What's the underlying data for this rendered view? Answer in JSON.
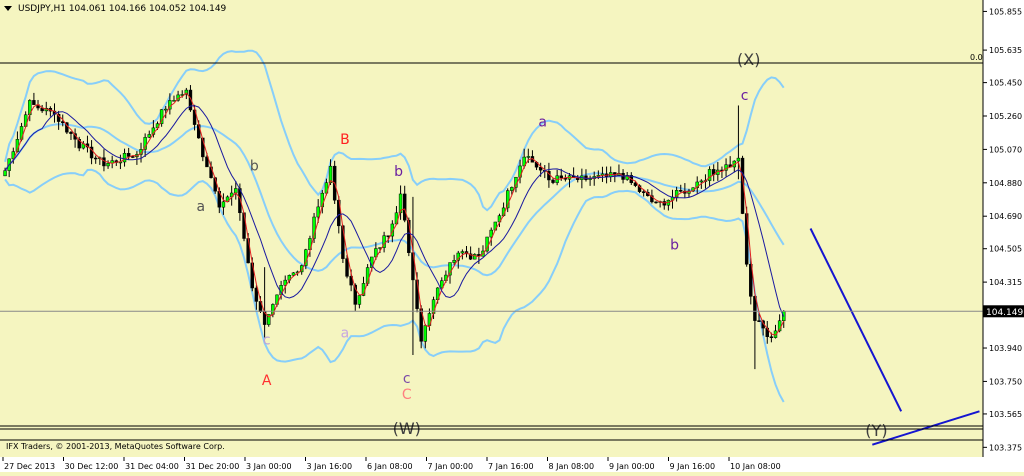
{
  "chart_data": {
    "type": "candlestick",
    "symbol_title": "USDJPY,H1  104.061 104.166 104.052 104.149",
    "indicator_label": "0.0",
    "copyright": "IFX Traders, © 2001-2013, MetaQuotes Software Corp.",
    "current_price": 104.149,
    "current_price_label": "104.149",
    "ylim": [
      103.32,
      105.92
    ],
    "y_ticks": [
      "105.855",
      "105.635",
      "105.450",
      "105.260",
      "105.070",
      "104.880",
      "104.690",
      "104.505",
      "104.315",
      "103.940",
      "103.750",
      "103.565",
      "103.375"
    ],
    "x_ticks": [
      "27 Dec 2013",
      "30 Dec 12:00",
      "31 Dec 04:00",
      "31 Dec 20:00",
      "3 Jan 00:00",
      "3 Jan 16:00",
      "6 Jan 08:00",
      "7 Jan 00:00",
      "7 Jan 16:00",
      "8 Jan 08:00",
      "9 Jan 00:00",
      "9 Jan 16:00",
      "10 Jan 08:00"
    ],
    "close_series": [
      {
        "bar": 0,
        "price": 104.95
      },
      {
        "bar": 6,
        "price": 105.33
      },
      {
        "bar": 12,
        "price": 105.27
      },
      {
        "bar": 18,
        "price": 105.1
      },
      {
        "bar": 24,
        "price": 104.98
      },
      {
        "bar": 32,
        "price": 105.05
      },
      {
        "bar": 40,
        "price": 105.35
      },
      {
        "bar": 44,
        "price": 105.4
      },
      {
        "bar": 48,
        "price": 105.05
      },
      {
        "bar": 52,
        "price": 104.75
      },
      {
        "bar": 56,
        "price": 104.85
      },
      {
        "bar": 60,
        "price": 104.3
      },
      {
        "bar": 63,
        "price": 104.05
      },
      {
        "bar": 68,
        "price": 104.35
      },
      {
        "bar": 72,
        "price": 104.4
      },
      {
        "bar": 76,
        "price": 104.75
      },
      {
        "bar": 79,
        "price": 104.95
      },
      {
        "bar": 82,
        "price": 104.45
      },
      {
        "bar": 85,
        "price": 104.2
      },
      {
        "bar": 89,
        "price": 104.45
      },
      {
        "bar": 93,
        "price": 104.6
      },
      {
        "bar": 96,
        "price": 104.8
      },
      {
        "bar": 99,
        "price": 104.35
      },
      {
        "bar": 101,
        "price": 104.0
      },
      {
        "bar": 105,
        "price": 104.3
      },
      {
        "bar": 110,
        "price": 104.5
      },
      {
        "bar": 115,
        "price": 104.45
      },
      {
        "bar": 120,
        "price": 104.7
      },
      {
        "bar": 126,
        "price": 105.05
      },
      {
        "bar": 132,
        "price": 104.9
      },
      {
        "bar": 140,
        "price": 104.9
      },
      {
        "bar": 150,
        "price": 104.92
      },
      {
        "bar": 158,
        "price": 104.75
      },
      {
        "bar": 166,
        "price": 104.85
      },
      {
        "bar": 172,
        "price": 104.95
      },
      {
        "bar": 178,
        "price": 105.0
      },
      {
        "bar": 180,
        "price": 104.4
      },
      {
        "bar": 182,
        "price": 104.1
      },
      {
        "bar": 186,
        "price": 104.0
      },
      {
        "bar": 189,
        "price": 104.15
      }
    ],
    "spikes": [
      {
        "bar": 178,
        "high": 105.32,
        "low": 104.9
      },
      {
        "bar": 182,
        "high": 104.2,
        "low": 103.82
      },
      {
        "bar": 99,
        "high": 104.8,
        "low": 103.9
      },
      {
        "bar": 63,
        "high": 104.4,
        "low": 104.0
      }
    ],
    "wave_labels": [
      {
        "text": "a",
        "bar": 48,
        "price": 104.72,
        "color": "#555555"
      },
      {
        "text": "b",
        "bar": 61,
        "price": 104.95,
        "color": "#555555"
      },
      {
        "text": "c",
        "bar": 64,
        "price": 103.96,
        "color": "#b8a0d8"
      },
      {
        "text": "A",
        "bar": 64,
        "price": 103.73,
        "color": "#ff3030"
      },
      {
        "text": "B",
        "bar": 83,
        "price": 105.1,
        "color": "#ff2020"
      },
      {
        "text": "a",
        "bar": 83,
        "price": 104.0,
        "color": "#c8a8e0"
      },
      {
        "text": "b",
        "bar": 96,
        "price": 104.92,
        "color": "#6a1fa0"
      },
      {
        "text": "c",
        "bar": 98,
        "price": 103.74,
        "color": "#7a4aa8"
      },
      {
        "text": "C",
        "bar": 98,
        "price": 103.65,
        "color": "#ff8080"
      },
      {
        "text": "(W)",
        "bar": 98,
        "price": 103.45,
        "color": "#404040"
      },
      {
        "text": "a",
        "bar": 131,
        "price": 105.2,
        "color": "#6a1fa0"
      },
      {
        "text": "b",
        "bar": 163,
        "price": 104.5,
        "color": "#6a1fa0"
      },
      {
        "text": "(X)",
        "bar": 181,
        "price": 105.55,
        "color": "#404040"
      },
      {
        "text": "c",
        "bar": 180,
        "price": 105.35,
        "color": "#6a1fa0"
      },
      {
        "text": "(Y)",
        "bar": 212,
        "price": 103.44,
        "color": "#404040"
      }
    ],
    "projection_lines": [
      {
        "points": [
          [
            196,
            104.62
          ],
          [
            218,
            103.58
          ]
        ]
      },
      {
        "points": [
          [
            211,
            103.39
          ],
          [
            237,
            103.58
          ]
        ]
      }
    ],
    "colors": {
      "background": "#000000",
      "bull_candle": "#00ff00",
      "bear_candle": "#000000",
      "bollinger": "#87cefa",
      "fast_ma": "#e02020",
      "slow_ma": "#1a1aa0",
      "projection": "#1515d0",
      "axis_panel": "#ffffff"
    }
  }
}
